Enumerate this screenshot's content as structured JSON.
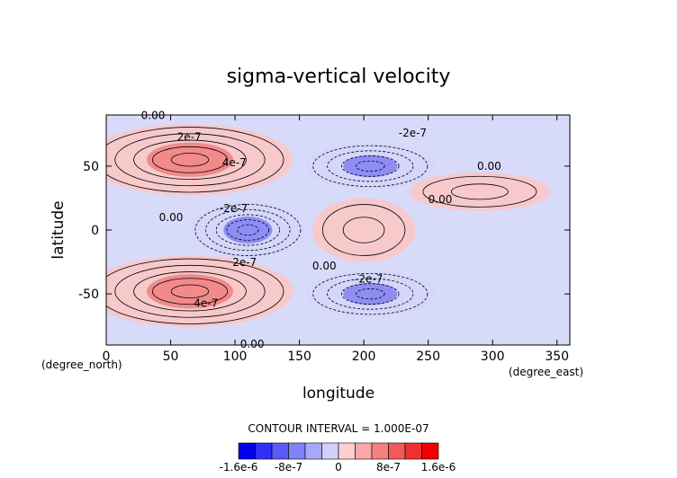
{
  "colors": {
    "background": "#ffffff",
    "positive_fill": "#f9c8c8",
    "positive_strong": "#f07a7a",
    "negative_fill": "#d4d6fb",
    "negative_strong": "#7a7af4",
    "contour": "#000000"
  },
  "chart_data": {
    "type": "heatmap",
    "title": "sigma-vertical velocity",
    "xlabel": "longitude",
    "ylabel": "latitude",
    "x_unit_label": "(degree_east)",
    "y_unit_label": "(degree_north)",
    "xlim": [
      0,
      360
    ],
    "ylim": [
      -90,
      90
    ],
    "x_ticks": [
      0,
      50,
      100,
      150,
      200,
      250,
      300,
      350
    ],
    "y_ticks": [
      -50,
      0,
      50
    ],
    "contour_interval_text": "CONTOUR INTERVAL = 1.000E-07",
    "contour_labels": [
      {
        "text": "0.00",
        "lon": 27,
        "lat": 87
      },
      {
        "text": "2e-7",
        "lon": 55,
        "lat": 70
      },
      {
        "text": "4e-7",
        "lon": 90,
        "lat": 50
      },
      {
        "text": "-2e-7",
        "lon": 227,
        "lat": 73
      },
      {
        "text": "0.00",
        "lon": 288,
        "lat": 47
      },
      {
        "text": "0.00",
        "lon": 250,
        "lat": 21
      },
      {
        "text": "-2e-7",
        "lon": 88,
        "lat": 14
      },
      {
        "text": "0.00",
        "lon": 41,
        "lat": 7
      },
      {
        "text": "2e-7",
        "lon": 98,
        "lat": -28
      },
      {
        "text": "0.00",
        "lon": 160,
        "lat": -31
      },
      {
        "text": "-2e-7",
        "lon": 193,
        "lat": -41
      },
      {
        "text": "4e-7",
        "lon": 68,
        "lat": -60
      },
      {
        "text": "0.00",
        "lon": 104,
        "lat": -92
      }
    ],
    "features": [
      {
        "sign": "positive",
        "center": [
          65,
          55
        ],
        "extent": [
          80,
          28
        ],
        "peak": 6e-07
      },
      {
        "sign": "positive",
        "center": [
          65,
          -48
        ],
        "extent": [
          80,
          28
        ],
        "peak": 6e-07
      },
      {
        "sign": "negative",
        "center": [
          110,
          0
        ],
        "extent": [
          45,
          22
        ],
        "peak": -6e-07
      },
      {
        "sign": "negative",
        "center": [
          205,
          50
        ],
        "extent": [
          50,
          18
        ],
        "peak": -5e-07
      },
      {
        "sign": "negative",
        "center": [
          205,
          -50
        ],
        "extent": [
          50,
          18
        ],
        "peak": -5e-07
      },
      {
        "sign": "positive",
        "center": [
          290,
          30
        ],
        "extent": [
          55,
          15
        ],
        "peak": 2e-07
      },
      {
        "sign": "positive",
        "center": [
          200,
          0
        ],
        "extent": [
          40,
          25
        ],
        "peak": 1e-07
      }
    ],
    "legend": {
      "type": "colorbar",
      "colors": [
        "#0000f0",
        "#3030f4",
        "#5a5af6",
        "#8080f8",
        "#a8a8fa",
        "#d0d0fc",
        "#fcd0d0",
        "#f8a8a8",
        "#f48080",
        "#f05a5a",
        "#f03030",
        "#f00000"
      ],
      "tick_labels": [
        "-1.6e-6",
        "-8e-7",
        "0",
        "8e-7",
        "1.6e-6"
      ]
    }
  }
}
